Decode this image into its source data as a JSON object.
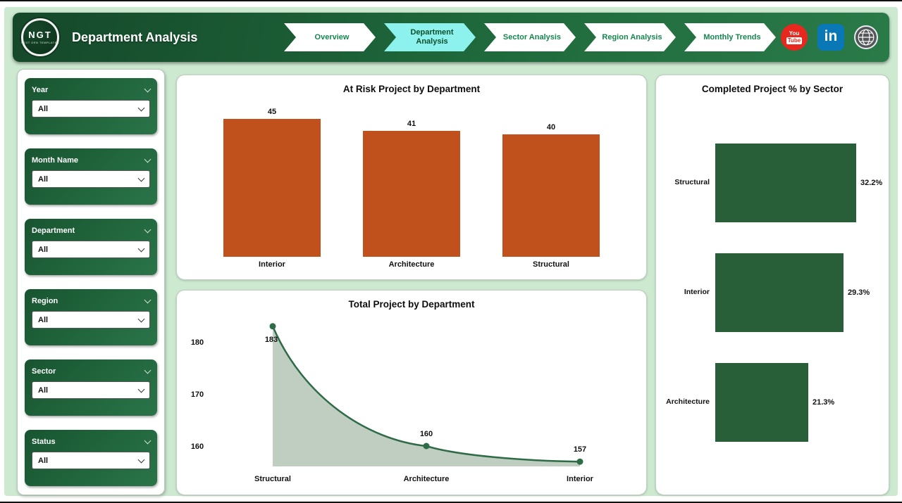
{
  "header": {
    "title": "Department Analysis",
    "logo": {
      "text": "NGT",
      "subtext": "NEXT GEN TEMPLATES"
    },
    "nav_items": [
      {
        "label": "Overview",
        "active": false
      },
      {
        "label": "Department Analysis",
        "active": true
      },
      {
        "label": "Sector Analysis",
        "active": false
      },
      {
        "label": "Region Analysis",
        "active": false
      },
      {
        "label": "Monthly Trends",
        "active": false
      }
    ],
    "social": {
      "youtube_top": "You",
      "youtube_bottom": "Tube",
      "linkedin_text": "in"
    }
  },
  "filters": [
    {
      "label": "Year",
      "value": "All"
    },
    {
      "label": "Month Name",
      "value": "All"
    },
    {
      "label": "Department",
      "value": "All"
    },
    {
      "label": "Region",
      "value": "All"
    },
    {
      "label": "Sector",
      "value": "All"
    },
    {
      "label": "Status",
      "value": "All"
    }
  ],
  "chart_data": [
    {
      "type": "bar",
      "title": "At Risk Project by Department",
      "categories": [
        "Interior",
        "Architecture",
        "Structural"
      ],
      "values": [
        45,
        41,
        40
      ],
      "data_labels": [
        "45",
        "41",
        "40"
      ],
      "ylim": [
        0,
        50
      ],
      "bar_color": "#c0511c",
      "grid": false,
      "legend": false
    },
    {
      "type": "area",
      "title": "Total Project by Department",
      "categories": [
        "Structural",
        "Architecture",
        "Interior"
      ],
      "values": [
        183,
        160,
        157
      ],
      "data_labels": [
        "183",
        "160",
        "157"
      ],
      "yticks": [
        180,
        170,
        160
      ],
      "ylim": [
        155,
        187
      ],
      "line_color": "#2e6b47",
      "fill_color": "#b9c8ba",
      "marker_color": "#2e6b47",
      "grid": false,
      "legend": false
    },
    {
      "type": "bar-horizontal",
      "title": "Completed Project % by Sector",
      "categories": [
        "Structural",
        "Interior",
        "Architecture"
      ],
      "values": [
        32.2,
        29.3,
        21.3
      ],
      "data_labels": [
        "32.2%",
        "29.3%",
        "21.3%"
      ],
      "xlim": [
        0,
        35
      ],
      "bar_color": "#285e38",
      "grid": false,
      "legend": false
    }
  ],
  "colors": {
    "canvas": "#cde9d0",
    "header_green": "#1f6a3c",
    "active_tab_cyan": "#8df2ee",
    "nav_text": "#16854e",
    "youtube_red": "#e6281e",
    "linkedin_blue": "#0a78b6"
  }
}
